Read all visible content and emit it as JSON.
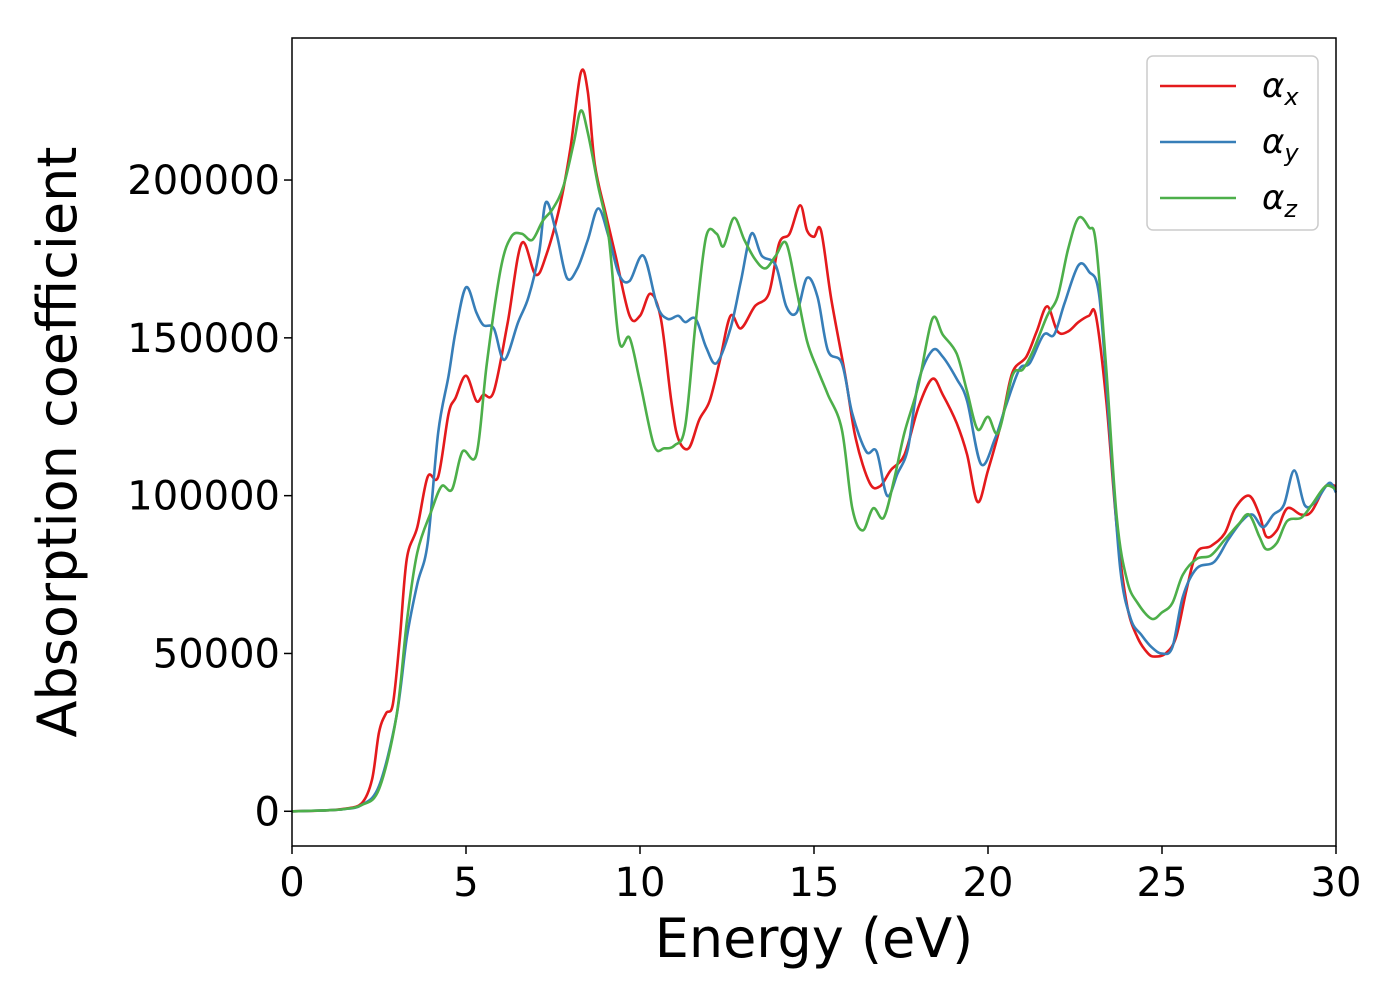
{
  "chart_data": {
    "type": "line",
    "title": "",
    "xlabel": "Energy (eV)",
    "ylabel": "Absorption coefficient",
    "xlim": [
      0,
      30
    ],
    "ylim": [
      -11000,
      245000
    ],
    "xticks": [
      0,
      5,
      10,
      15,
      20,
      25,
      30
    ],
    "yticks": [
      0,
      50000,
      100000,
      150000,
      200000
    ],
    "grid": false,
    "legend_position": "top-right",
    "series": [
      {
        "name": "α",
        "subscript": "x",
        "color": "#e41a1c",
        "points": [
          [
            0,
            0
          ],
          [
            1,
            300
          ],
          [
            1.5,
            800
          ],
          [
            2,
            2500
          ],
          [
            2.3,
            10000
          ],
          [
            2.5,
            25000
          ],
          [
            2.7,
            31000
          ],
          [
            2.9,
            34000
          ],
          [
            3.1,
            55000
          ],
          [
            3.3,
            80000
          ],
          [
            3.6,
            90000
          ],
          [
            3.9,
            106000
          ],
          [
            4.2,
            106000
          ],
          [
            4.5,
            126000
          ],
          [
            4.7,
            131000
          ],
          [
            5,
            138000
          ],
          [
            5.3,
            130000
          ],
          [
            5.5,
            132000
          ],
          [
            5.8,
            133000
          ],
          [
            6.2,
            155000
          ],
          [
            6.6,
            180000
          ],
          [
            7,
            170000
          ],
          [
            7.3,
            176000
          ],
          [
            7.7,
            192000
          ],
          [
            8,
            210000
          ],
          [
            8.3,
            234000
          ],
          [
            8.5,
            228000
          ],
          [
            8.7,
            205000
          ],
          [
            9,
            190000
          ],
          [
            9.3,
            176000
          ],
          [
            9.7,
            157000
          ],
          [
            10,
            157000
          ],
          [
            10.3,
            164000
          ],
          [
            10.6,
            156000
          ],
          [
            10.9,
            130000
          ],
          [
            11.1,
            118000
          ],
          [
            11.4,
            115000
          ],
          [
            11.7,
            124000
          ],
          [
            12,
            130000
          ],
          [
            12.3,
            143000
          ],
          [
            12.6,
            157000
          ],
          [
            12.9,
            153000
          ],
          [
            13.3,
            160000
          ],
          [
            13.7,
            164000
          ],
          [
            14,
            180000
          ],
          [
            14.3,
            183000
          ],
          [
            14.6,
            192000
          ],
          [
            14.8,
            184000
          ],
          [
            15,
            182000
          ],
          [
            15.2,
            184000
          ],
          [
            15.5,
            162000
          ],
          [
            15.9,
            138000
          ],
          [
            16.2,
            118000
          ],
          [
            16.6,
            104000
          ],
          [
            16.9,
            103000
          ],
          [
            17.2,
            108000
          ],
          [
            17.6,
            113000
          ],
          [
            18,
            128000
          ],
          [
            18.4,
            137000
          ],
          [
            18.7,
            132000
          ],
          [
            19.1,
            123000
          ],
          [
            19.4,
            113000
          ],
          [
            19.7,
            98000
          ],
          [
            20,
            108000
          ],
          [
            20.4,
            124000
          ],
          [
            20.7,
            139000
          ],
          [
            21.1,
            144000
          ],
          [
            21.4,
            152000
          ],
          [
            21.7,
            160000
          ],
          [
            22,
            152000
          ],
          [
            22.3,
            152000
          ],
          [
            22.6,
            155000
          ],
          [
            22.9,
            157000
          ],
          [
            23.1,
            157000
          ],
          [
            23.4,
            130000
          ],
          [
            23.7,
            90000
          ],
          [
            24,
            65000
          ],
          [
            24.3,
            55000
          ],
          [
            24.6,
            50000
          ],
          [
            24.8,
            49000
          ],
          [
            25.1,
            50000
          ],
          [
            25.4,
            55000
          ],
          [
            25.7,
            70000
          ],
          [
            26,
            82000
          ],
          [
            26.4,
            84000
          ],
          [
            26.8,
            88000
          ],
          [
            27.1,
            96000
          ],
          [
            27.5,
            100000
          ],
          [
            27.8,
            94000
          ],
          [
            28,
            87000
          ],
          [
            28.3,
            89000
          ],
          [
            28.6,
            96000
          ],
          [
            29,
            94000
          ],
          [
            29.3,
            95000
          ],
          [
            29.7,
            103000
          ],
          [
            30,
            103000
          ]
        ]
      },
      {
        "name": "α",
        "subscript": "y",
        "color": "#377eb8",
        "points": [
          [
            0,
            0
          ],
          [
            1,
            300
          ],
          [
            1.5,
            700
          ],
          [
            2,
            2000
          ],
          [
            2.5,
            8000
          ],
          [
            3,
            30000
          ],
          [
            3.3,
            55000
          ],
          [
            3.6,
            72000
          ],
          [
            3.9,
            85000
          ],
          [
            4.2,
            120000
          ],
          [
            4.5,
            138000
          ],
          [
            4.7,
            152000
          ],
          [
            5,
            166000
          ],
          [
            5.3,
            158000
          ],
          [
            5.5,
            154000
          ],
          [
            5.8,
            153000
          ],
          [
            6.1,
            143000
          ],
          [
            6.5,
            155000
          ],
          [
            6.8,
            163000
          ],
          [
            7.1,
            177000
          ],
          [
            7.3,
            193000
          ],
          [
            7.6,
            183000
          ],
          [
            7.9,
            169000
          ],
          [
            8.2,
            172000
          ],
          [
            8.5,
            181000
          ],
          [
            8.8,
            191000
          ],
          [
            9.1,
            182000
          ],
          [
            9.4,
            170000
          ],
          [
            9.7,
            168000
          ],
          [
            10.1,
            176000
          ],
          [
            10.5,
            160000
          ],
          [
            10.8,
            156000
          ],
          [
            11.1,
            157000
          ],
          [
            11.3,
            155000
          ],
          [
            11.6,
            156000
          ],
          [
            11.9,
            147000
          ],
          [
            12.2,
            142000
          ],
          [
            12.6,
            153000
          ],
          [
            12.9,
            168000
          ],
          [
            13.2,
            183000
          ],
          [
            13.5,
            176000
          ],
          [
            13.9,
            173000
          ],
          [
            14.2,
            160000
          ],
          [
            14.5,
            158000
          ],
          [
            14.8,
            169000
          ],
          [
            15.1,
            163000
          ],
          [
            15.4,
            146000
          ],
          [
            15.8,
            142000
          ],
          [
            16.1,
            126000
          ],
          [
            16.5,
            114000
          ],
          [
            16.8,
            114000
          ],
          [
            17.1,
            100000
          ],
          [
            17.4,
            107000
          ],
          [
            17.7,
            115000
          ],
          [
            18,
            136000
          ],
          [
            18.4,
            146000
          ],
          [
            18.7,
            144000
          ],
          [
            19.1,
            137000
          ],
          [
            19.4,
            130000
          ],
          [
            19.8,
            110000
          ],
          [
            20.2,
            118000
          ],
          [
            20.5,
            128000
          ],
          [
            20.9,
            140000
          ],
          [
            21.2,
            142000
          ],
          [
            21.6,
            151000
          ],
          [
            21.9,
            151000
          ],
          [
            22.2,
            161000
          ],
          [
            22.6,
            173000
          ],
          [
            22.9,
            171000
          ],
          [
            23.2,
            163000
          ],
          [
            23.5,
            120000
          ],
          [
            23.8,
            77000
          ],
          [
            24.1,
            61000
          ],
          [
            24.4,
            56000
          ],
          [
            24.7,
            52000
          ],
          [
            25,
            50000
          ],
          [
            25.3,
            52000
          ],
          [
            25.6,
            68000
          ],
          [
            26,
            77000
          ],
          [
            26.5,
            79000
          ],
          [
            26.9,
            86000
          ],
          [
            27.3,
            92000
          ],
          [
            27.6,
            94000
          ],
          [
            27.9,
            90000
          ],
          [
            28.2,
            94000
          ],
          [
            28.5,
            97000
          ],
          [
            28.8,
            108000
          ],
          [
            29.1,
            97000
          ],
          [
            29.4,
            98000
          ],
          [
            29.8,
            104000
          ],
          [
            30,
            101000
          ]
        ]
      },
      {
        "name": "α",
        "subscript": "z",
        "color": "#4daf4a",
        "points": [
          [
            0,
            0
          ],
          [
            1,
            300
          ],
          [
            1.5,
            700
          ],
          [
            2,
            2000
          ],
          [
            2.5,
            7000
          ],
          [
            3,
            30000
          ],
          [
            3.3,
            60000
          ],
          [
            3.6,
            82000
          ],
          [
            4,
            95000
          ],
          [
            4.3,
            103000
          ],
          [
            4.6,
            102000
          ],
          [
            4.9,
            114000
          ],
          [
            5.3,
            113000
          ],
          [
            5.6,
            142000
          ],
          [
            6,
            172000
          ],
          [
            6.3,
            182000
          ],
          [
            6.6,
            183000
          ],
          [
            6.9,
            181000
          ],
          [
            7.2,
            187000
          ],
          [
            7.5,
            191000
          ],
          [
            7.8,
            198000
          ],
          [
            8.1,
            212000
          ],
          [
            8.3,
            222000
          ],
          [
            8.5,
            215000
          ],
          [
            8.8,
            198000
          ],
          [
            9.1,
            182000
          ],
          [
            9.4,
            149000
          ],
          [
            9.7,
            150000
          ],
          [
            10,
            136000
          ],
          [
            10.4,
            116000
          ],
          [
            10.7,
            115000
          ],
          [
            11,
            116000
          ],
          [
            11.3,
            122000
          ],
          [
            11.6,
            155000
          ],
          [
            11.9,
            182000
          ],
          [
            12.2,
            183000
          ],
          [
            12.4,
            179000
          ],
          [
            12.7,
            188000
          ],
          [
            13,
            181000
          ],
          [
            13.3,
            175000
          ],
          [
            13.6,
            172000
          ],
          [
            13.9,
            176000
          ],
          [
            14.2,
            180000
          ],
          [
            14.5,
            165000
          ],
          [
            14.8,
            149000
          ],
          [
            15.1,
            140000
          ],
          [
            15.4,
            132000
          ],
          [
            15.8,
            121000
          ],
          [
            16.1,
            96000
          ],
          [
            16.4,
            89000
          ],
          [
            16.7,
            96000
          ],
          [
            17,
            93000
          ],
          [
            17.3,
            105000
          ],
          [
            17.6,
            120000
          ],
          [
            18,
            135000
          ],
          [
            18.4,
            156000
          ],
          [
            18.7,
            151000
          ],
          [
            19.1,
            145000
          ],
          [
            19.4,
            133000
          ],
          [
            19.7,
            121000
          ],
          [
            20,
            125000
          ],
          [
            20.3,
            120000
          ],
          [
            20.7,
            138000
          ],
          [
            21,
            140000
          ],
          [
            21.3,
            146000
          ],
          [
            21.7,
            157000
          ],
          [
            22,
            163000
          ],
          [
            22.3,
            178000
          ],
          [
            22.6,
            188000
          ],
          [
            22.9,
            185000
          ],
          [
            23.1,
            180000
          ],
          [
            23.4,
            140000
          ],
          [
            23.7,
            93000
          ],
          [
            24,
            73000
          ],
          [
            24.3,
            66000
          ],
          [
            24.7,
            61000
          ],
          [
            25,
            63000
          ],
          [
            25.3,
            66000
          ],
          [
            25.6,
            75000
          ],
          [
            26,
            80000
          ],
          [
            26.4,
            81000
          ],
          [
            26.8,
            86000
          ],
          [
            27.2,
            91000
          ],
          [
            27.5,
            94000
          ],
          [
            27.8,
            87000
          ],
          [
            28,
            83000
          ],
          [
            28.3,
            85000
          ],
          [
            28.6,
            92000
          ],
          [
            29,
            93000
          ],
          [
            29.3,
            97000
          ],
          [
            29.7,
            103000
          ],
          [
            30,
            102000
          ]
        ]
      }
    ]
  }
}
